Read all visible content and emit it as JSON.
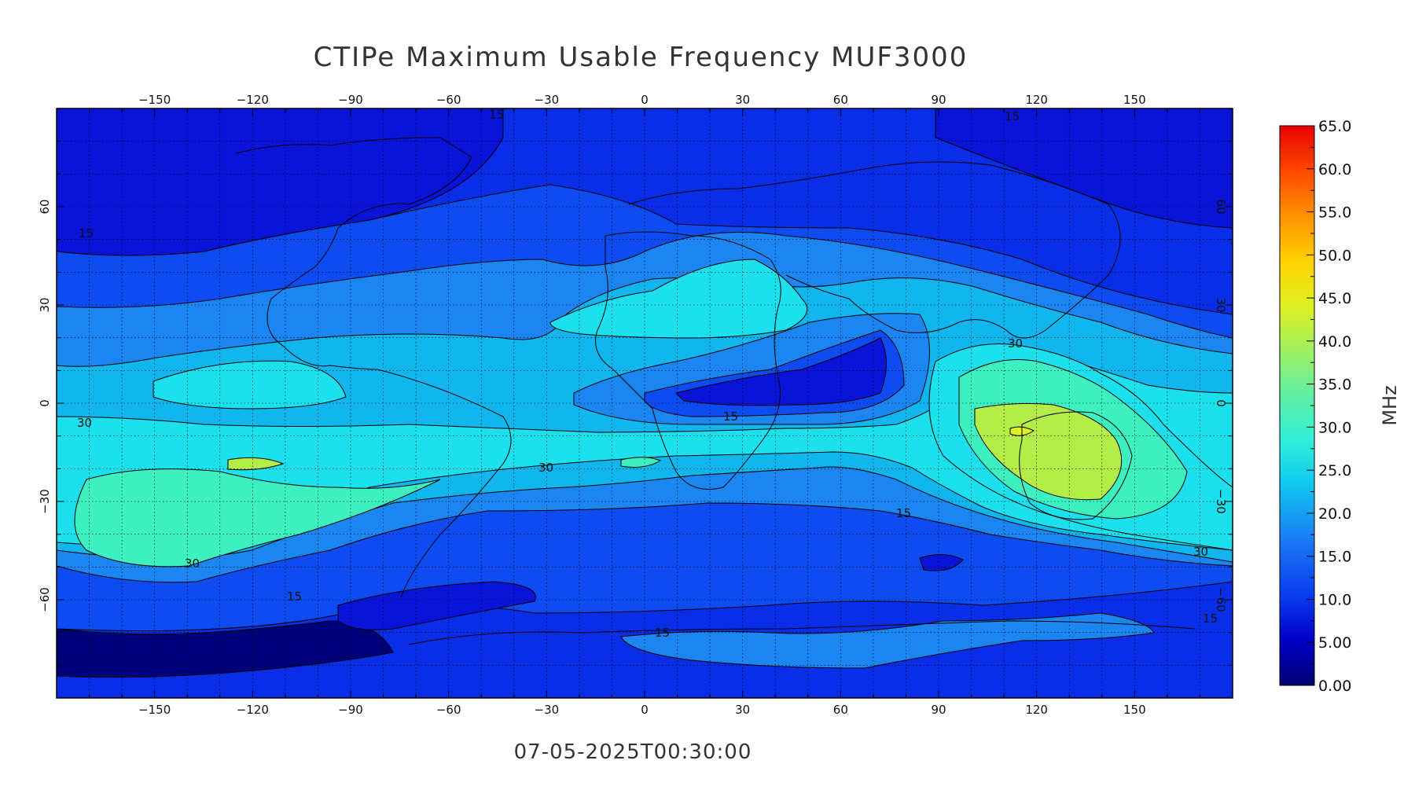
{
  "title": "CTIPe Maximum Usable Frequency MUF3000",
  "timestamp": "07-05-2025T00:30:00",
  "colorbar": {
    "unit": "MHz",
    "labels": [
      "65.0",
      "60.0",
      "55.0",
      "50.0",
      "45.0",
      "40.0",
      "35.0",
      "30.0",
      "25.0",
      "20.0",
      "15.0",
      "10.0",
      "5.00",
      "0.00"
    ],
    "range": [
      0,
      65
    ],
    "colors": [
      "#00007a",
      "#0000c8",
      "#0a3cf0",
      "#1a7af5",
      "#10b8f0",
      "#22e0e8",
      "#3ef0c8",
      "#70f090",
      "#a8f060",
      "#e0f020",
      "#ffd800",
      "#ff9a00",
      "#ff5a00",
      "#e80000"
    ]
  },
  "axes": {
    "x_ticks": [
      "-150",
      "-120",
      "-90",
      "-60",
      "-30",
      "0",
      "30",
      "60",
      "90",
      "120",
      "150"
    ],
    "y_ticks": [
      "60",
      "30",
      "0",
      "-30",
      "-60"
    ],
    "x_values": [
      -150,
      -120,
      -90,
      -60,
      -30,
      0,
      30,
      60,
      90,
      120,
      150
    ],
    "y_values": [
      60,
      30,
      0,
      -30,
      -60
    ],
    "xlim": [
      -180,
      180
    ],
    "ylim": [
      -90,
      90
    ],
    "grid": true
  },
  "contour_labels": [
    "15",
    "15",
    "30",
    "30",
    "30",
    "30",
    "15",
    "15",
    "15",
    "15",
    "15",
    "30",
    "15"
  ],
  "fill_colors": {
    "level_0_5": "#00007a",
    "level_5_10": "#0a14d8",
    "level_10_15": "#0e4cf2",
    "level_15_20": "#1b86f2",
    "level_20_25": "#12b6ef",
    "level_25_30": "#1ce0ec",
    "level_30_35": "#3df0c0",
    "level_35_40": "#b4ec48",
    "ocean_bg": "#0a2ee8"
  }
}
